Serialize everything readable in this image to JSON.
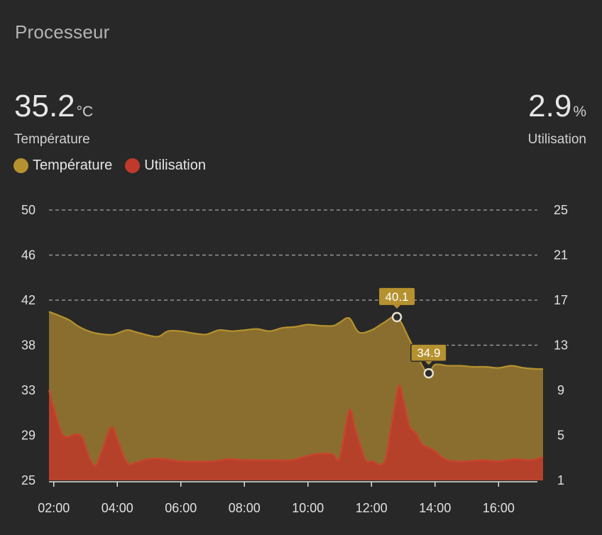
{
  "card": {
    "title": "Processeur"
  },
  "stats": {
    "temperature": {
      "value": "35.2",
      "unit": "°C",
      "label": "Température"
    },
    "usage": {
      "value": "2.9",
      "unit": "%",
      "label": "Utilisation"
    }
  },
  "legend": [
    {
      "label": "Température",
      "color": "#b5922f"
    },
    {
      "label": "Utilisation",
      "color": "#c0392b"
    }
  ],
  "colors": {
    "temp_line": "#b5922f",
    "temp_fill": "#8c712f",
    "usage_line": "#c9452c",
    "usage_fill": "#b8402a",
    "grid": "#bdbdbd",
    "background": "#282828"
  },
  "chart_data": {
    "type": "area",
    "x_ticks": [
      "02:00",
      "04:00",
      "06:00",
      "08:00",
      "10:00",
      "12:00",
      "14:00",
      "16:00"
    ],
    "x_tick_values": [
      2,
      4,
      6,
      8,
      10,
      12,
      14,
      16
    ],
    "xlim": [
      1.85,
      17.4
    ],
    "y_left_ticks": [
      "50",
      "46",
      "42",
      "38",
      "33",
      "29",
      "25"
    ],
    "y_right_ticks": [
      "25",
      "21",
      "17",
      "13",
      "9",
      "5",
      "1"
    ],
    "y_left_range": [
      25,
      50
    ],
    "y_right_range": [
      1,
      25
    ],
    "series": [
      {
        "name": "Température",
        "axis": "left",
        "x": [
          1.85,
          2.2,
          2.5,
          2.8,
          3.2,
          3.6,
          3.9,
          4.3,
          4.6,
          5.0,
          5.3,
          5.6,
          6.0,
          6.4,
          6.8,
          7.2,
          7.6,
          8.0,
          8.4,
          8.8,
          9.2,
          9.6,
          10.0,
          10.4,
          10.8,
          11.0,
          11.3,
          11.6,
          12.0,
          12.4,
          12.8,
          13.2,
          13.6,
          13.8,
          14.0,
          14.4,
          14.8,
          15.2,
          15.6,
          16.0,
          16.4,
          16.8,
          17.2,
          17.4
        ],
        "values": [
          40.6,
          40.2,
          39.8,
          39.2,
          38.7,
          38.5,
          38.5,
          38.9,
          38.7,
          38.4,
          38.3,
          38.8,
          38.8,
          38.6,
          38.5,
          38.9,
          38.8,
          38.9,
          39.0,
          38.8,
          39.1,
          39.2,
          39.4,
          39.3,
          39.3,
          39.6,
          40.0,
          38.7,
          38.9,
          39.6,
          40.1,
          38.0,
          35.6,
          34.9,
          35.7,
          35.6,
          35.6,
          35.5,
          35.5,
          35.4,
          35.6,
          35.4,
          35.3,
          35.3
        ],
        "highlight": [
          {
            "x": 12.8,
            "value": 40.1,
            "label": "40.1"
          },
          {
            "x": 13.8,
            "value": 34.9,
            "label": "34.9"
          }
        ]
      },
      {
        "name": "Utilisation",
        "axis": "right",
        "x": [
          1.85,
          2.0,
          2.3,
          2.7,
          2.9,
          3.1,
          3.3,
          3.5,
          3.8,
          4.0,
          4.3,
          4.6,
          5.0,
          5.5,
          6.0,
          7.0,
          7.5,
          8.0,
          9.0,
          9.5,
          10.0,
          10.5,
          10.8,
          11.0,
          11.3,
          11.5,
          11.8,
          12.0,
          12.4,
          12.6,
          12.85,
          13.0,
          13.2,
          13.4,
          13.6,
          13.8,
          14.0,
          14.3,
          14.6,
          15.0,
          15.5,
          16.0,
          16.5,
          17.0,
          17.4
        ],
        "values": [
          9.0,
          7.5,
          5.0,
          5.1,
          4.8,
          3.2,
          2.3,
          3.5,
          5.7,
          4.7,
          2.6,
          2.6,
          2.9,
          2.9,
          2.7,
          2.7,
          2.9,
          2.8,
          2.8,
          2.8,
          3.2,
          3.4,
          3.3,
          3.0,
          7.2,
          5.5,
          2.9,
          2.7,
          2.6,
          5.5,
          9.3,
          8.2,
          5.8,
          5.2,
          4.2,
          3.9,
          3.6,
          2.9,
          2.7,
          2.7,
          2.8,
          2.7,
          2.9,
          2.8,
          3.1
        ]
      }
    ]
  }
}
